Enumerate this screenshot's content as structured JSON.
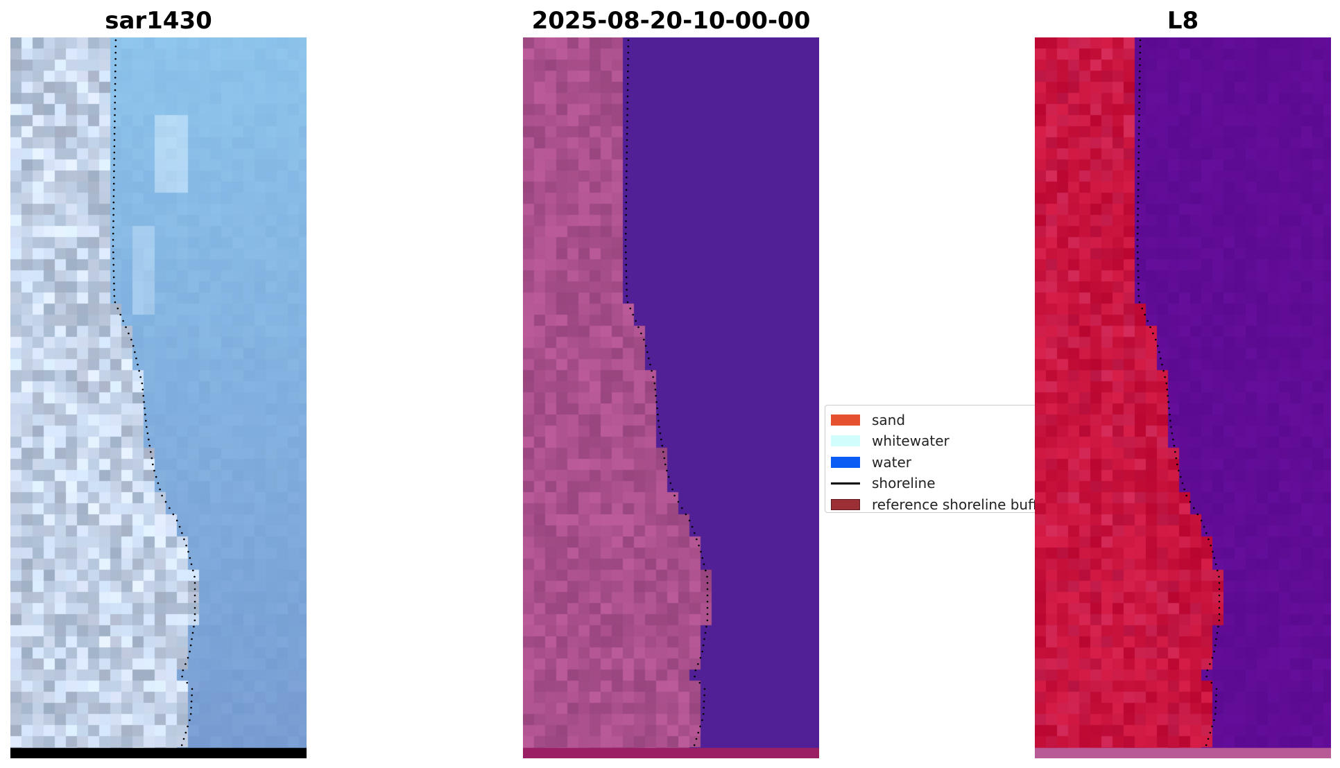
{
  "panels": [
    {
      "id": "sar",
      "title": "sar1430",
      "palette": "true-color",
      "bottom_strip_color": "#000000"
    },
    {
      "id": "classified",
      "title": "2025-08-20-10-00-00",
      "palette": "purple-classified",
      "bottom_strip_color": "#9a1f63"
    },
    {
      "id": "l8",
      "title": "L8",
      "palette": "false-color",
      "bottom_strip_color": "#b85a96"
    }
  ],
  "legend": {
    "items": [
      {
        "label": "sand",
        "kind": "patch",
        "color": "#e5512f"
      },
      {
        "label": "whitewater",
        "kind": "patch",
        "color": "#cffefd"
      },
      {
        "label": "water",
        "kind": "patch",
        "color": "#0a5cf5"
      },
      {
        "label": "shoreline",
        "kind": "line",
        "color": "#000000"
      },
      {
        "label": "reference shoreline buffer",
        "kind": "patch",
        "color": "#9b2f35",
        "edge": "#5a1a1e"
      }
    ]
  }
}
